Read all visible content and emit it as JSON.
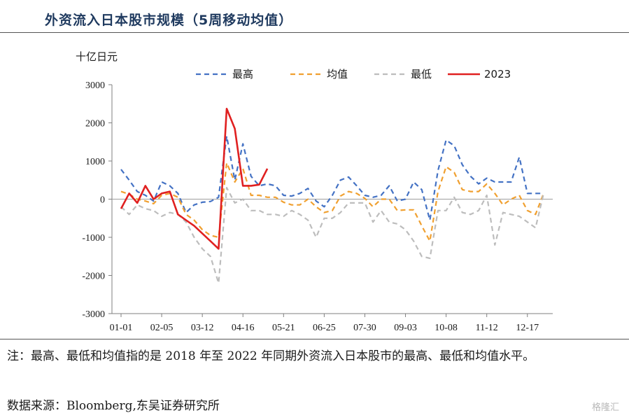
{
  "title": "外资流入日本股市规模（5周移动均值）",
  "note": "注：最高、最低和均值指的是 2018 年至 2022 年同期外资流入日本股市的最高、最低和均值水平。",
  "source": "数据来源：Bloomberg,东吴证券研究所",
  "watermark": "格隆汇",
  "chart_data": {
    "type": "line",
    "unit_label": "十亿日元",
    "ylim": [
      -3000,
      3000
    ],
    "yticks": [
      3000,
      2000,
      1000,
      0,
      -1000,
      -2000,
      -3000
    ],
    "xtick_labels": [
      "01-01",
      "02-05",
      "03-12",
      "04-16",
      "05-21",
      "06-25",
      "07-30",
      "09-03",
      "10-08",
      "11-12",
      "12-17"
    ],
    "xtick_weeks": [
      0,
      5,
      10,
      15,
      20,
      25,
      30,
      35,
      40,
      45,
      50
    ],
    "n_weeks": 53,
    "legend_position": "top",
    "series": [
      {
        "name": "最高",
        "color": "#4472c4",
        "dash": "7,5",
        "values": [
          780,
          500,
          200,
          100,
          -50,
          450,
          350,
          150,
          -350,
          -150,
          -80,
          -60,
          50,
          1650,
          500,
          1450,
          600,
          350,
          400,
          350,
          100,
          80,
          150,
          280,
          -50,
          -200,
          100,
          500,
          580,
          350,
          100,
          50,
          100,
          350,
          -50,
          0,
          450,
          250,
          -550,
          750,
          1550,
          1400,
          900,
          600,
          400,
          550,
          450,
          450,
          450,
          1100,
          150,
          150,
          150
        ]
      },
      {
        "name": "均值",
        "color": "#f0a030",
        "dash": "7,5",
        "values": [
          200,
          130,
          0,
          -50,
          -120,
          100,
          150,
          50,
          -400,
          -550,
          -800,
          -950,
          -1000,
          950,
          450,
          800,
          100,
          100,
          50,
          50,
          -80,
          -150,
          -150,
          0,
          -200,
          -350,
          -300,
          80,
          200,
          150,
          20,
          -200,
          0,
          0,
          -300,
          -280,
          -280,
          -700,
          -1100,
          200,
          850,
          700,
          250,
          200,
          200,
          400,
          150,
          -150,
          0,
          100,
          -300,
          -400,
          150
        ]
      },
      {
        "name": "最低",
        "color": "#bdbdbd",
        "dash": "7,5",
        "values": [
          -200,
          -400,
          -150,
          -250,
          -300,
          -450,
          -350,
          -400,
          -600,
          -1000,
          -1300,
          -1500,
          -2200,
          300,
          -100,
          0,
          -300,
          -300,
          -400,
          -400,
          -450,
          -300,
          -400,
          -550,
          -1000,
          -500,
          -500,
          -350,
          -100,
          -100,
          -100,
          -600,
          -300,
          -600,
          -650,
          -800,
          -1100,
          -1500,
          -1550,
          -300,
          -300,
          50,
          -350,
          -400,
          -300,
          100,
          -1200,
          -350,
          -400,
          -450,
          -600,
          -750,
          150
        ]
      },
      {
        "name": "2023",
        "color": "#e02020",
        "dash": "",
        "values": [
          -250,
          150,
          -100,
          350,
          0,
          150,
          200,
          -400,
          -550,
          -700,
          -900,
          -1100,
          -1300,
          2370,
          1850,
          350,
          350,
          380,
          800
        ]
      }
    ]
  }
}
